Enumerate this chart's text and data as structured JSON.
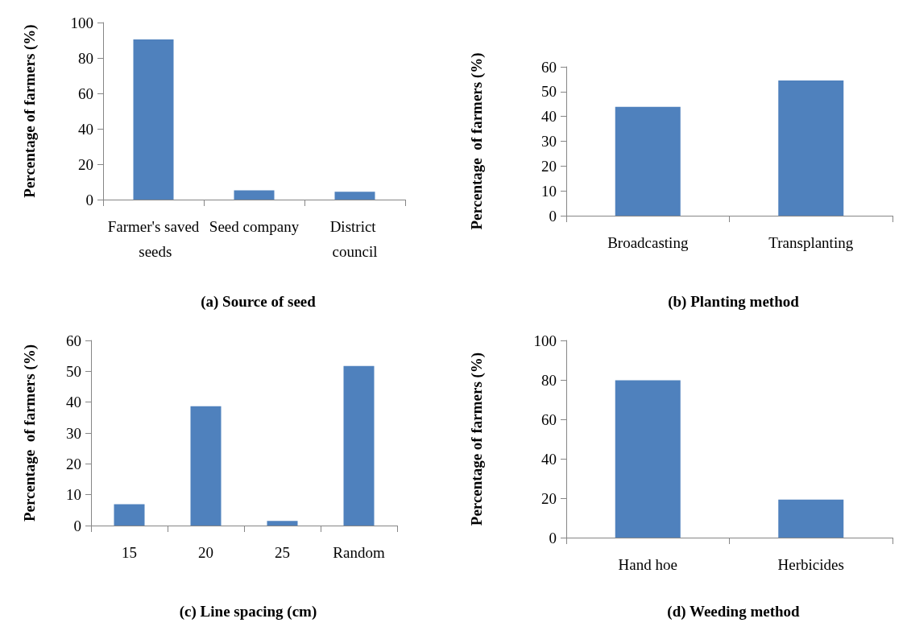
{
  "chart_data": [
    {
      "type": "bar",
      "title": "(a) Source of seed",
      "ylabel": "Percentage of farmers (%)",
      "categories": [
        "Farmer's saved seeds",
        "Seed company",
        "District council"
      ],
      "values": [
        90.4,
        5.2,
        4.4
      ],
      "color": "#4f81bd",
      "ylim": [
        0,
        100
      ],
      "yticks": [
        0,
        20,
        40,
        60,
        80,
        100
      ]
    },
    {
      "type": "bar",
      "title": "(b) Planting method",
      "ylabel": "Percentage  of farmers (%)",
      "categories": [
        "Broadcasting",
        "Transplanting"
      ],
      "values": [
        43.9,
        54.5
      ],
      "color": "#4f81bd",
      "ylim": [
        0,
        60
      ],
      "yticks": [
        0,
        10,
        20,
        30,
        40,
        50,
        60
      ]
    },
    {
      "type": "bar",
      "title": "(c) Line spacing (cm)",
      "ylabel": "Percentage  of farmers (%)",
      "categories": [
        "15",
        "20",
        "25",
        "Random"
      ],
      "values": [
        6.9,
        38.7,
        1.5,
        51.7
      ],
      "color": "#4f81bd",
      "ylim": [
        0,
        60
      ],
      "yticks": [
        0,
        10,
        20,
        30,
        40,
        50,
        60
      ]
    },
    {
      "type": "bar",
      "title": "(d) Weeding method",
      "ylabel": "Percentage of farmers (%)",
      "categories": [
        "Hand hoe",
        "Herbicides"
      ],
      "values": [
        79.8,
        19.3
      ],
      "color": "#4f81bd",
      "ylim": [
        0,
        100
      ],
      "yticks": [
        0,
        20,
        40,
        60,
        80,
        100
      ]
    }
  ]
}
